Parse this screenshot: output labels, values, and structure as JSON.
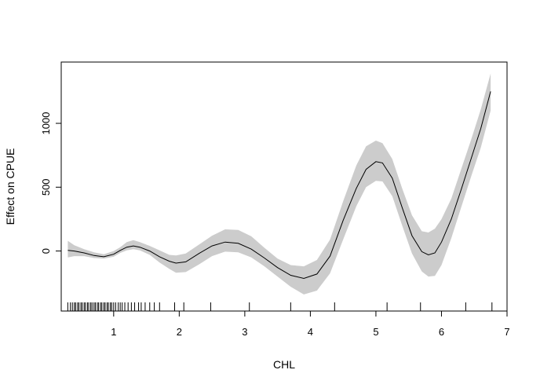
{
  "chart_data": {
    "type": "line",
    "title": "",
    "xlabel": "CHL",
    "ylabel": "Effect on CPUE",
    "xlim": [
      0.2,
      7.0
    ],
    "ylim": [
      -470,
      1480
    ],
    "x_ticks": [
      1,
      2,
      3,
      4,
      5,
      6,
      7
    ],
    "y_ticks": [
      0,
      500,
      1000
    ],
    "grid": false,
    "legend": "none",
    "colors": {
      "line": "#000000",
      "band": "#cccccc",
      "rug": "#000000"
    },
    "series": [
      {
        "x": [
          0.3,
          0.4,
          0.55,
          0.7,
          0.85,
          1.0,
          1.1,
          1.2,
          1.3,
          1.4,
          1.55,
          1.7,
          1.85,
          1.95,
          2.1,
          2.3,
          2.5,
          2.7,
          2.9,
          3.1,
          3.3,
          3.5,
          3.7,
          3.9,
          4.1,
          4.3,
          4.5,
          4.7,
          4.85,
          5.0,
          5.1,
          5.25,
          5.4,
          5.55,
          5.7,
          5.8,
          5.9,
          6.0,
          6.15,
          6.3,
          6.45,
          6.6,
          6.75
        ],
        "y": [
          5,
          0,
          -15,
          -35,
          -45,
          -25,
          5,
          30,
          40,
          30,
          0,
          -45,
          -80,
          -95,
          -85,
          -20,
          40,
          70,
          60,
          15,
          -55,
          -130,
          -190,
          -215,
          -180,
          -40,
          240,
          490,
          640,
          700,
          690,
          570,
          340,
          120,
          -5,
          -30,
          -15,
          70,
          250,
          480,
          720,
          960,
          1250
        ],
        "lower": [
          -50,
          -40,
          -40,
          -55,
          -60,
          -45,
          -15,
          5,
          15,
          5,
          -30,
          -90,
          -140,
          -170,
          -165,
          -105,
          -40,
          -5,
          -10,
          -50,
          -120,
          -200,
          -280,
          -340,
          -310,
          -175,
          90,
          350,
          500,
          550,
          545,
          430,
          200,
          -20,
          -160,
          -200,
          -195,
          -110,
          100,
          340,
          580,
          810,
          1100
        ],
        "upper": [
          80,
          45,
          15,
          -10,
          -25,
          0,
          30,
          70,
          85,
          70,
          40,
          5,
          -30,
          -35,
          -20,
          50,
          120,
          170,
          165,
          115,
          25,
          -60,
          -110,
          -120,
          -70,
          90,
          390,
          670,
          820,
          865,
          845,
          720,
          490,
          280,
          155,
          145,
          175,
          250,
          410,
          640,
          870,
          1110,
          1390
        ]
      }
    ],
    "rug": [
      0.3,
      0.34,
      0.37,
      0.4,
      0.42,
      0.45,
      0.47,
      0.5,
      0.52,
      0.55,
      0.57,
      0.6,
      0.62,
      0.65,
      0.67,
      0.7,
      0.72,
      0.75,
      0.77,
      0.8,
      0.82,
      0.85,
      0.87,
      0.9,
      0.92,
      0.95,
      0.97,
      1.0,
      1.03,
      1.07,
      1.1,
      1.13,
      1.17,
      1.22,
      1.27,
      1.32,
      1.38,
      1.42,
      1.48,
      1.55,
      1.62,
      1.7,
      1.93,
      2.07,
      2.48,
      3.07,
      3.7,
      4.37,
      5.17,
      5.68,
      6.37,
      6.77
    ]
  }
}
